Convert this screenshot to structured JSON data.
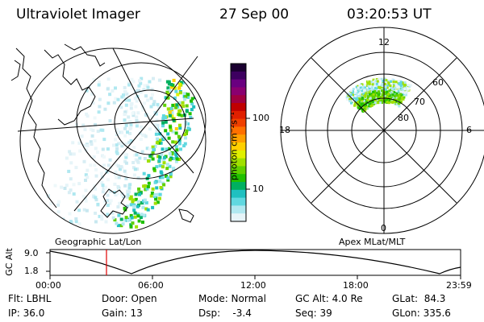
{
  "header": {
    "instrument": "Ultraviolet Imager",
    "date": "27 Sep 00",
    "time": "03:20:53 UT"
  },
  "colorbar": {
    "unit_label": "photon cm⁻²s⁻¹",
    "ticks": [
      "100",
      "10"
    ],
    "colors": [
      "#1a0030",
      "#3d0060",
      "#6a0080",
      "#8a0070",
      "#a00040",
      "#c00000",
      "#e02000",
      "#f04000",
      "#ff7000",
      "#ffa000",
      "#ffd000",
      "#e0f000",
      "#a0e000",
      "#60d000",
      "#20c000",
      "#00b060",
      "#20c0c0",
      "#60d8e0",
      "#b0e8f0",
      "#e6f4f8"
    ]
  },
  "left_map": {
    "caption": "Geographic Lat/Lon"
  },
  "right_map": {
    "caption": "Apex MLat/MLT",
    "mlt_labels": {
      "top": "12",
      "right": "6",
      "bottom": "0",
      "left": "18"
    },
    "lat_labels": [
      "60",
      "70",
      "80"
    ]
  },
  "altitude_plot": {
    "ylabel": "GC Alt",
    "yticks": [
      "9.0",
      "1.8"
    ],
    "xticks": [
      "00:00",
      "06:00",
      "12:00",
      "18:00",
      "23:59"
    ],
    "current_time_marker_color": "#e00000"
  },
  "footer": {
    "flt": "Flt: LBHL",
    "ip": "IP: 36.0",
    "door": "Door: Open",
    "gain": "Gain: 13",
    "mode": "Mode: Normal",
    "dsp": "Dsp:    -3.4",
    "gc_alt": "GC Alt: 4.0 Re",
    "seq": "Seq: 39",
    "glat": "GLat:  84.3",
    "glon": "GLon: 335.6"
  }
}
